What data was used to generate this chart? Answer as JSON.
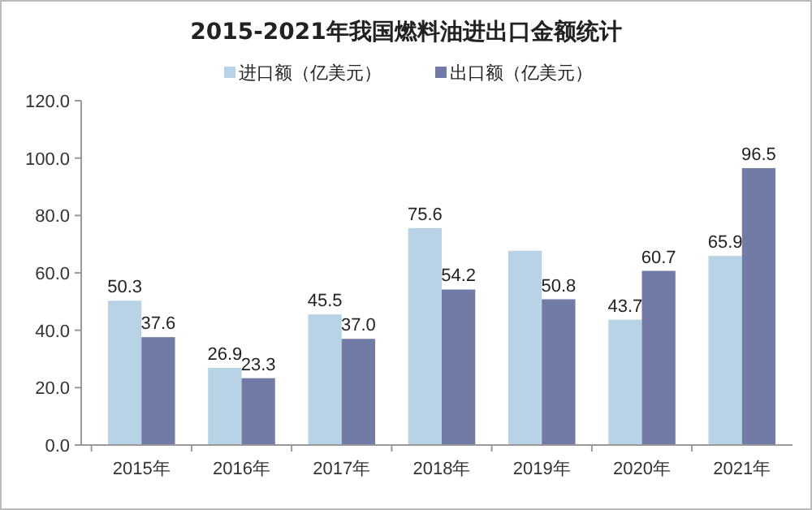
{
  "chart_data": {
    "type": "bar",
    "title": "2015-2021年我国燃料油进出口金额统计",
    "categories": [
      "2015年",
      "2016年",
      "2017年",
      "2018年",
      "2019年",
      "2020年",
      "2021年"
    ],
    "series": [
      {
        "name": "进口额（亿美元）",
        "color": "#b8d3e5",
        "values": [
          50.3,
          26.9,
          45.5,
          75.6,
          67.7,
          43.7,
          65.9
        ],
        "value_labels": [
          "50.3",
          "26.9",
          "45.5",
          "75.6",
          null,
          "43.7",
          "65.9"
        ]
      },
      {
        "name": "出口额（亿美元）",
        "color": "#717ba5",
        "values": [
          37.6,
          23.3,
          37.0,
          54.2,
          50.8,
          60.7,
          96.5
        ],
        "value_labels": [
          "37.6",
          "23.3",
          "37.0",
          "54.2",
          "50.8",
          "60.7",
          "96.5"
        ]
      }
    ],
    "ylim": [
      0,
      120
    ],
    "yticks": [
      {
        "value": 0,
        "label": "0.0"
      },
      {
        "value": 20,
        "label": "20.0"
      },
      {
        "value": 40,
        "label": "40.0"
      },
      {
        "value": 60,
        "label": "60.0"
      },
      {
        "value": 80,
        "label": "80.0"
      },
      {
        "value": 100,
        "label": "100.0"
      },
      {
        "value": 120,
        "label": "120.0"
      }
    ],
    "grid": false,
    "legend": "top"
  }
}
